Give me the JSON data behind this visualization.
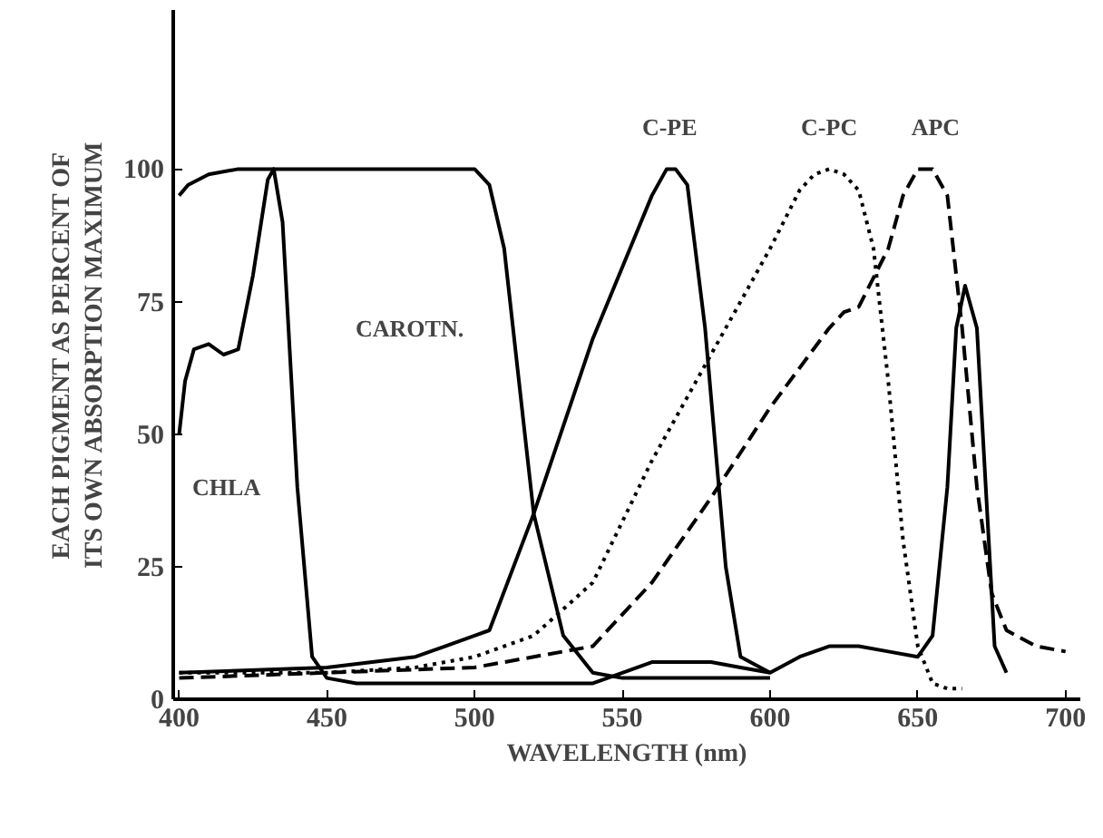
{
  "chart_data": {
    "type": "line",
    "xlabel": "WAVELENGTH (nm)",
    "ylabel": "EACH PIGMENT AS PERCENT OF\nITS OWN ABSORPTION MAXIMUM",
    "xlim": [
      398,
      705
    ],
    "xticks": [
      400,
      450,
      500,
      550,
      600,
      650,
      700
    ],
    "ylim": [
      0,
      130
    ],
    "yticks": [
      0,
      25,
      50,
      75,
      100
    ],
    "grid": false,
    "legend": false,
    "marker": "none",
    "series": [
      {
        "name": "CHLA",
        "color": "#000000",
        "line_style": "solid",
        "x": [
          400,
          402,
          405,
          410,
          415,
          420,
          425,
          430,
          432,
          435,
          440,
          445,
          450,
          460,
          480,
          500,
          520,
          540,
          550,
          560,
          570,
          580,
          590,
          600,
          610,
          620,
          630,
          640,
          650,
          655,
          660,
          663,
          666,
          670,
          673,
          676,
          680
        ],
        "values": [
          50,
          60,
          66,
          67,
          65,
          66,
          80,
          98,
          100,
          90,
          40,
          8,
          4,
          3,
          3,
          3,
          3,
          3,
          5,
          7,
          7,
          7,
          6,
          5,
          8,
          10,
          10,
          9,
          8,
          12,
          40,
          70,
          78,
          70,
          40,
          10,
          5
        ]
      },
      {
        "name": "CAROTN.",
        "color": "#000000",
        "line_style": "solid",
        "x": [
          400,
          403,
          410,
          420,
          430,
          440,
          460,
          480,
          500,
          505,
          510,
          515,
          520,
          530,
          540,
          550,
          560,
          580,
          600
        ],
        "values": [
          95,
          97,
          99,
          100,
          100,
          100,
          100,
          100,
          100,
          97,
          85,
          60,
          35,
          12,
          5,
          4,
          4,
          4,
          4
        ]
      },
      {
        "name": "C-PE",
        "color": "#000000",
        "line_style": "solid",
        "x": [
          400,
          450,
          480,
          490,
          500,
          505,
          520,
          540,
          560,
          565,
          568,
          572,
          578,
          585,
          590,
          600
        ],
        "values": [
          5,
          6,
          8,
          10,
          12,
          13,
          35,
          68,
          95,
          100,
          100,
          97,
          70,
          25,
          8,
          5
        ]
      },
      {
        "name": "C-PC",
        "color": "#000000",
        "line_style": "dotted",
        "x": [
          400,
          450,
          480,
          500,
          520,
          540,
          560,
          580,
          600,
          610,
          615,
          620,
          625,
          630,
          635,
          640,
          645,
          650,
          655,
          660,
          665
        ],
        "values": [
          5,
          5,
          6,
          8,
          12,
          22,
          45,
          65,
          85,
          96,
          99,
          100,
          99,
          96,
          85,
          60,
          30,
          10,
          3,
          2,
          2
        ]
      },
      {
        "name": "APC",
        "color": "#000000",
        "line_style": "dashed",
        "x": [
          400,
          450,
          500,
          520,
          540,
          560,
          580,
          600,
          620,
          625,
          630,
          640,
          645,
          650,
          655,
          660,
          665,
          670,
          675,
          680,
          690,
          700
        ],
        "values": [
          4,
          5,
          6,
          8,
          10,
          22,
          38,
          55,
          70,
          73,
          74,
          85,
          95,
          100,
          100,
          95,
          70,
          40,
          20,
          13,
          10,
          9
        ]
      }
    ]
  }
}
